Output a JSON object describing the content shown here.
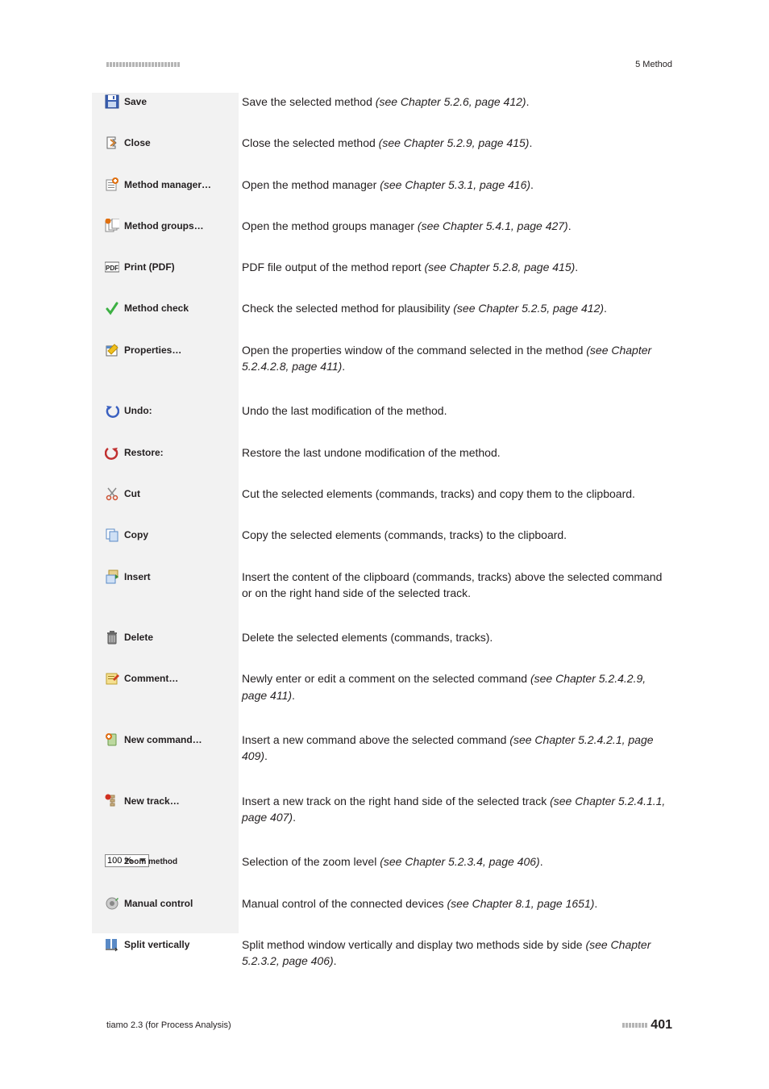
{
  "header": {
    "chapter": "5 Method",
    "dot_count": 23
  },
  "rows": [
    {
      "icon": "save-icon",
      "label": "Save",
      "desc_prefix": "Save the selected method ",
      "desc_ital": "(see Chapter 5.2.6, page 412)",
      "desc_suffix": "."
    },
    {
      "icon": "close-icon",
      "label": "Close",
      "desc_prefix": "Close the selected method ",
      "desc_ital": "(see Chapter 5.2.9, page 415)",
      "desc_suffix": "."
    },
    {
      "icon": "method-manager-icon",
      "label": "Method manager…",
      "desc_prefix": "Open the method manager ",
      "desc_ital": "(see Chapter 5.3.1, page 416)",
      "desc_suffix": "."
    },
    {
      "icon": "method-groups-icon",
      "label": "Method groups…",
      "desc_prefix": "Open the method groups manager ",
      "desc_ital": "(see Chapter 5.4.1, page 427)",
      "desc_suffix": "."
    },
    {
      "icon": "pdf-icon",
      "label": "Print (PDF)",
      "desc_prefix": "PDF file output of the method report ",
      "desc_ital": "(see Chapter 5.2.8, page 415)",
      "desc_suffix": "."
    },
    {
      "icon": "check-icon",
      "label": "Method check",
      "desc_prefix": "Check the selected method for plausibility ",
      "desc_ital": "(see Chapter 5.2.5, page 412)",
      "desc_suffix": "."
    },
    {
      "icon": "properties-icon",
      "label": "Properties…",
      "desc_prefix": "Open the properties window of the command selected in the method ",
      "desc_ital": "(see Chapter 5.2.4.2.8, page 411)",
      "desc_suffix": "."
    },
    {
      "icon": "undo-icon",
      "label": "Undo:",
      "desc_prefix": "Undo the last modification of the method.",
      "desc_ital": "",
      "desc_suffix": ""
    },
    {
      "icon": "restore-icon",
      "label": "Restore:",
      "desc_prefix": "Restore the last undone modification of the method.",
      "desc_ital": "",
      "desc_suffix": ""
    },
    {
      "icon": "cut-icon",
      "label": "Cut",
      "desc_prefix": "Cut the selected elements (commands, tracks) and copy them to the clipboard.",
      "desc_ital": "",
      "desc_suffix": ""
    },
    {
      "icon": "copy-icon",
      "label": "Copy",
      "desc_prefix": "Copy the selected elements (commands, tracks) to the clipboard.",
      "desc_ital": "",
      "desc_suffix": ""
    },
    {
      "icon": "insert-icon",
      "label": "Insert",
      "desc_prefix": "Insert the content of the clipboard (commands, tracks) above the selected command or on the right hand side of the selected track.",
      "desc_ital": "",
      "desc_suffix": ""
    },
    {
      "icon": "delete-icon",
      "label": "Delete",
      "desc_prefix": "Delete the selected elements (commands, tracks).",
      "desc_ital": "",
      "desc_suffix": ""
    },
    {
      "icon": "comment-icon",
      "label": "Comment…",
      "desc_prefix": "Newly enter or edit a comment on the selected command ",
      "desc_ital": "(see Chapter 5.2.4.2.9, page 411)",
      "desc_suffix": "."
    },
    {
      "icon": "new-command-icon",
      "label": "New command…",
      "desc_prefix": "Insert a new command above the selected command ",
      "desc_ital": "(see Chapter 5.2.4.2.1, page 409)",
      "desc_suffix": "."
    },
    {
      "icon": "new-track-icon",
      "label": "New track…",
      "desc_prefix": "Insert a new track on the right hand side of the selected track ",
      "desc_ital": "(see Chapter 5.2.4.1.1, page 407)",
      "desc_suffix": "."
    },
    {
      "icon": "zoom-icon",
      "label": "Zoom method",
      "zoom_value": "100 %",
      "desc_prefix": "Selection of the zoom level ",
      "desc_ital": "(see Chapter 5.2.3.4, page 406)",
      "desc_suffix": "."
    },
    {
      "icon": "manual-control-icon",
      "label": "Manual control",
      "desc_prefix": "Manual control of the connected devices ",
      "desc_ital": "(see Chapter 8.1, page 1651)",
      "desc_suffix": "."
    },
    {
      "icon": "split-vertically-icon",
      "label": "Split vertically",
      "desc_prefix": "Split method window vertically and display two methods side by side ",
      "desc_ital": "(see Chapter 5.2.3.2, page 406)",
      "desc_suffix": "."
    }
  ],
  "footer": {
    "left": "tiamo 2.3 (for Process Analysis)",
    "page": "401",
    "dot_count": 8
  },
  "colors": {
    "page_bg": "#ffffff",
    "sidebar_bg": "#f2f2f2",
    "text": "#231f20",
    "dot": "#b5b5b5"
  }
}
